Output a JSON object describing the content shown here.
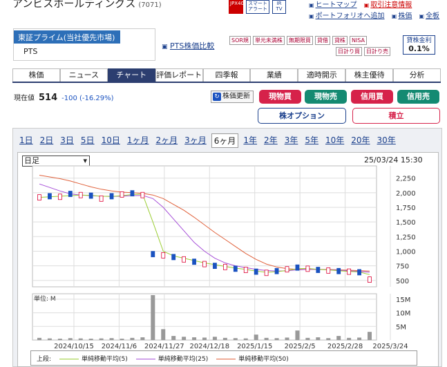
{
  "header": {
    "company_name": "アンビスホールディングス",
    "code": "(7071)",
    "icons": [
      {
        "label": "JPX400",
        "red": true
      },
      {
        "label": "スマートアラート"
      },
      {
        "label": "IR TV"
      }
    ],
    "links": [
      {
        "label": "ヒートマップ",
        "color": "#1a3f8c"
      },
      {
        "label": "取引注意情報",
        "color": "#c00"
      },
      {
        "label": "ポートフォリオへ追加",
        "color": "#1a3f8c"
      },
      {
        "label": "株価",
        "color": "#1a3f8c"
      },
      {
        "label": "全板",
        "color": "#1a3f8c"
      }
    ]
  },
  "market": {
    "selected": "東証プライム(当社優先市場)",
    "other": "PTS",
    "pts_link": "PTS株価比較"
  },
  "badges": [
    "SOR規",
    "単元未満株",
    "無期限買",
    "貸借",
    "貸株",
    "NISA"
  ],
  "badges2": [
    "日計り買",
    "日計り売"
  ],
  "lending": {
    "label": "貸株金利",
    "value": "0.1%"
  },
  "tabs": [
    "株価",
    "ニュース",
    "チャート",
    "評価レポート",
    "四季報",
    "業績",
    "適時開示",
    "株主優待",
    "分析"
  ],
  "active_tab": "チャート",
  "price": {
    "label": "現在値",
    "value": "514",
    "change": "-100 (-16.29%)"
  },
  "refresh": "株価更新",
  "trade_buttons": [
    "現物買",
    "現物売",
    "信用買",
    "信用売"
  ],
  "option_button": "株オプション",
  "tsumitate_button": "積立",
  "periods": [
    "1日",
    "2日",
    "3日",
    "5日",
    "10日",
    "1ヶ月",
    "2ヶ月",
    "3ヶ月",
    "6ヶ月",
    "1年",
    "2年",
    "3年",
    "5年",
    "10年",
    "20年",
    "30年"
  ],
  "active_period": "6ヶ月",
  "chart_select": "日足",
  "chart_datetime": "25/03/24 15:30",
  "chart_data": {
    "type": "line",
    "price_axis": [
      2250,
      2000,
      1750,
      1500,
      1250,
      1000,
      750,
      500
    ],
    "volume_axis": [
      "15M",
      "10M",
      "5M"
    ],
    "volume_label": "単位: M",
    "x_ticks": [
      "2024/10/15",
      "2024/11/6",
      "2024/11/27",
      "2024/12/18",
      "2025/1/15",
      "2025/2/5",
      "2025/2/28",
      "2025/3/24"
    ],
    "price": [
      1920,
      1940,
      1930,
      1980,
      1960,
      1950,
      1900,
      1940,
      1970,
      1990,
      1960,
      950,
      930,
      900,
      860,
      820,
      780,
      750,
      730,
      700,
      680,
      650,
      630,
      660,
      690,
      720,
      700,
      680,
      670,
      660,
      650,
      640,
      514
    ],
    "ma5": [
      1920,
      1930,
      1940,
      1950,
      1960,
      1955,
      1940,
      1935,
      1950,
      1970,
      1975,
      1500,
      1000,
      920,
      880,
      840,
      800,
      770,
      740,
      710,
      690,
      660,
      640,
      650,
      670,
      700,
      705,
      690,
      680,
      665,
      655,
      645,
      600
    ],
    "ma25": [
      2150,
      2090,
      2030,
      1980,
      1960,
      1950,
      1940,
      1935,
      1940,
      1950,
      1955,
      1900,
      1750,
      1550,
      1350,
      1150,
      1000,
      880,
      800,
      750,
      720,
      690,
      670,
      660,
      665,
      680,
      690,
      690,
      685,
      675,
      665,
      655,
      640
    ],
    "ma50": [
      2300,
      2270,
      2240,
      2200,
      2150,
      2100,
      2060,
      2030,
      2010,
      2000,
      1990,
      1960,
      1900,
      1800,
      1700,
      1580,
      1450,
      1320,
      1200,
      1080,
      960,
      860,
      780,
      730,
      700,
      690,
      690,
      690,
      688,
      682,
      675,
      668,
      660
    ],
    "volume": [
      0.8,
      0.6,
      0.5,
      0.7,
      0.6,
      0.5,
      0.6,
      0.7,
      0.5,
      0.8,
      1.0,
      16.5,
      4.0,
      1.5,
      1.2,
      1.0,
      0.9,
      1.2,
      0.8,
      0.7,
      0.6,
      2.0,
      0.8,
      0.7,
      0.9,
      3.5,
      0.8,
      1.0,
      0.7,
      1.5,
      0.8,
      0.9,
      3.0
    ],
    "legend": [
      {
        "name": "単純移動平均(5)",
        "color": "#9acd32"
      },
      {
        "name": "単純移動平均(25)",
        "color": "#a64fd8"
      },
      {
        "name": "単純移動平均(50)",
        "color": "#e0603a"
      }
    ],
    "legend_prefix": "上段:"
  }
}
